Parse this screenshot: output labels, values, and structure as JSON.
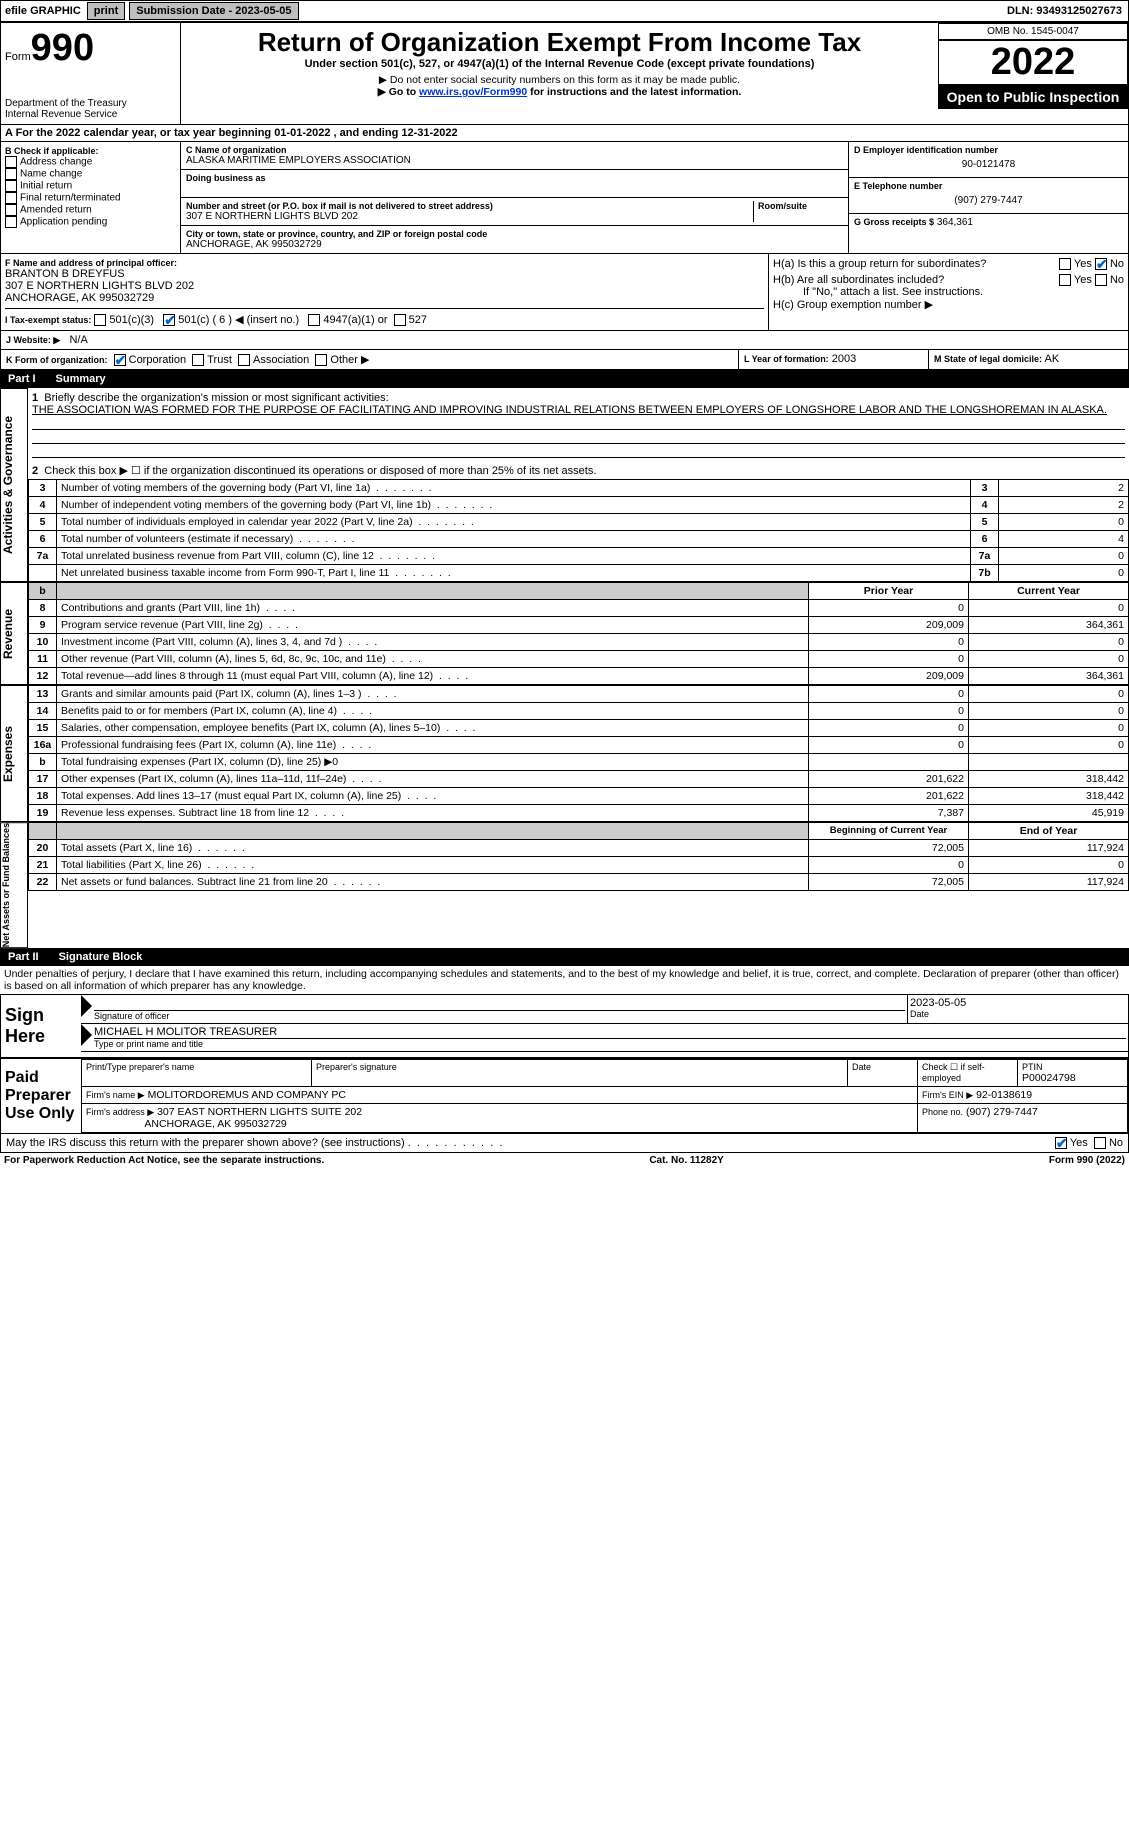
{
  "topbar": {
    "efile": "efile GRAPHIC",
    "print": "print",
    "sub_lbl": "Submission Date - 2023-05-05",
    "dln_lbl": "DLN: 93493125027673"
  },
  "header": {
    "form_word": "Form",
    "form_num": "990",
    "dept": "Department of the Treasury",
    "irs": "Internal Revenue Service",
    "title": "Return of Organization Exempt From Income Tax",
    "sub1": "Under section 501(c), 527, or 4947(a)(1) of the Internal Revenue Code (except private foundations)",
    "sub2": "▶ Do not enter social security numbers on this form as it may be made public.",
    "sub3_pre": "▶ Go to ",
    "sub3_link": "www.irs.gov/Form990",
    "sub3_post": " for instructions and the latest information.",
    "omb": "OMB No. 1545-0047",
    "year": "2022",
    "open": "Open to Public Inspection"
  },
  "A": {
    "line": "A For the 2022 calendar year, or tax year beginning 01-01-2022   , and ending 12-31-2022"
  },
  "B": {
    "hdr": "B Check if applicable:",
    "opts": [
      "Address change",
      "Name change",
      "Initial return",
      "Final return/terminated",
      "Amended return",
      "Application pending"
    ]
  },
  "C": {
    "name_lbl": "C Name of organization",
    "name": "ALASKA MARITIME EMPLOYERS ASSOCIATION",
    "dba_lbl": "Doing business as",
    "addr_lbl": "Number and street (or P.O. box if mail is not delivered to street address)",
    "room_lbl": "Room/suite",
    "addr": "307 E NORTHERN LIGHTS BLVD 202",
    "city_lbl": "City or town, state or province, country, and ZIP or foreign postal code",
    "city": "ANCHORAGE, AK  995032729"
  },
  "D": {
    "lbl": "D Employer identification number",
    "val": "90-0121478",
    "tel_lbl": "E Telephone number",
    "tel": "(907) 279-7447",
    "gross_lbl": "G Gross receipts $",
    "gross": "364,361"
  },
  "F": {
    "lbl": "F  Name and address of principal officer:",
    "name": "BRANTON B DREYFUS",
    "addr1": "307 E NORTHERN LIGHTS BLVD 202",
    "addr2": "ANCHORAGE, AK  995032729"
  },
  "H": {
    "a": "H(a)  Is this a group return for subordinates?",
    "b": "H(b)  Are all subordinates included?",
    "b2": "If \"No,\" attach a list. See instructions.",
    "c": "H(c)  Group exemption number ▶",
    "yes": "Yes",
    "no": "No"
  },
  "I": {
    "lbl": "I   Tax-exempt status:",
    "o1": "501(c)(3)",
    "o2": "501(c) ( 6 ) ◀ (insert no.)",
    "o3": "4947(a)(1) or",
    "o4": "527"
  },
  "J": {
    "lbl": "J   Website: ▶",
    "val": "N/A"
  },
  "K": {
    "lbl": "K Form of organization:",
    "o1": "Corporation",
    "o2": "Trust",
    "o3": "Association",
    "o4": "Other ▶"
  },
  "L": {
    "lbl": "L Year of formation:",
    "val": "2003"
  },
  "M": {
    "lbl": "M State of legal domicile:",
    "val": "AK"
  },
  "part1": {
    "hdr": "Part I",
    "title": "Summary",
    "side1": "Activities & Governance",
    "side2": "Revenue",
    "side3": "Expenses",
    "side4": "Net Assets or Fund Balances",
    "l1": "Briefly describe the organization's mission or most significant activities:",
    "mission": "THE ASSOCIATION WAS FORMED FOR THE PURPOSE OF FACILITATING AND IMPROVING INDUSTRIAL RELATIONS BETWEEN EMPLOYERS OF LONGSHORE LABOR AND THE LONGSHOREMAN IN ALASKA.",
    "l2": "Check this box ▶ ☐  if the organization discontinued its operations or disposed of more than 25% of its net assets.",
    "rows_gov": [
      {
        "n": "3",
        "t": "Number of voting members of the governing body (Part VI, line 1a)",
        "b": "3",
        "v": "2"
      },
      {
        "n": "4",
        "t": "Number of independent voting members of the governing body (Part VI, line 1b)",
        "b": "4",
        "v": "2"
      },
      {
        "n": "5",
        "t": "Total number of individuals employed in calendar year 2022 (Part V, line 2a)",
        "b": "5",
        "v": "0"
      },
      {
        "n": "6",
        "t": "Total number of volunteers (estimate if necessary)",
        "b": "6",
        "v": "4"
      },
      {
        "n": "7a",
        "t": "Total unrelated business revenue from Part VIII, column (C), line 12",
        "b": "7a",
        "v": "0"
      },
      {
        "n": "",
        "t": "Net unrelated business taxable income from Form 990-T, Part I, line 11",
        "b": "7b",
        "v": "0"
      }
    ],
    "col_py": "Prior Year",
    "col_cy": "Current Year",
    "rows_rev": [
      {
        "n": "8",
        "t": "Contributions and grants (Part VIII, line 1h)",
        "py": "0",
        "cy": "0"
      },
      {
        "n": "9",
        "t": "Program service revenue (Part VIII, line 2g)",
        "py": "209,009",
        "cy": "364,361"
      },
      {
        "n": "10",
        "t": "Investment income (Part VIII, column (A), lines 3, 4, and 7d )",
        "py": "0",
        "cy": "0"
      },
      {
        "n": "11",
        "t": "Other revenue (Part VIII, column (A), lines 5, 6d, 8c, 9c, 10c, and 11e)",
        "py": "0",
        "cy": "0"
      },
      {
        "n": "12",
        "t": "Total revenue—add lines 8 through 11 (must equal Part VIII, column (A), line 12)",
        "py": "209,009",
        "cy": "364,361"
      }
    ],
    "rows_exp": [
      {
        "n": "13",
        "t": "Grants and similar amounts paid (Part IX, column (A), lines 1–3 )",
        "py": "0",
        "cy": "0"
      },
      {
        "n": "14",
        "t": "Benefits paid to or for members (Part IX, column (A), line 4)",
        "py": "0",
        "cy": "0"
      },
      {
        "n": "15",
        "t": "Salaries, other compensation, employee benefits (Part IX, column (A), lines 5–10)",
        "py": "0",
        "cy": "0"
      },
      {
        "n": "16a",
        "t": "Professional fundraising fees (Part IX, column (A), line 11e)",
        "py": "0",
        "cy": "0"
      },
      {
        "n": "b",
        "t": "Total fundraising expenses (Part IX, column (D), line 25) ▶0",
        "py": "",
        "cy": "",
        "shade": true
      },
      {
        "n": "17",
        "t": "Other expenses (Part IX, column (A), lines 11a–11d, 11f–24e)",
        "py": "201,622",
        "cy": "318,442"
      },
      {
        "n": "18",
        "t": "Total expenses. Add lines 13–17 (must equal Part IX, column (A), line 25)",
        "py": "201,622",
        "cy": "318,442"
      },
      {
        "n": "19",
        "t": "Revenue less expenses. Subtract line 18 from line 12",
        "py": "7,387",
        "cy": "45,919"
      }
    ],
    "col_boy": "Beginning of Current Year",
    "col_eoy": "End of Year",
    "rows_net": [
      {
        "n": "20",
        "t": "Total assets (Part X, line 16)",
        "py": "72,005",
        "cy": "117,924"
      },
      {
        "n": "21",
        "t": "Total liabilities (Part X, line 26)",
        "py": "0",
        "cy": "0"
      },
      {
        "n": "22",
        "t": "Net assets or fund balances. Subtract line 21 from line 20",
        "py": "72,005",
        "cy": "117,924"
      }
    ]
  },
  "part2": {
    "hdr": "Part II",
    "title": "Signature Block",
    "pen": "Under penalties of perjury, I declare that I have examined this return, including accompanying schedules and statements, and to the best of my knowledge and belief, it is true, correct, and complete. Declaration of preparer (other than officer) is based on all information of which preparer has any knowledge.",
    "sign_lbl": "Sign Here",
    "sig_officer": "Signature of officer",
    "sig_date": "2023-05-05",
    "date_lbl": "Date",
    "officer_name": "MICHAEL H MOLITOR  TREASURER",
    "type_lbl": "Type or print name and title",
    "paid_lbl": "Paid Preparer Use Only",
    "pp_name_lbl": "Print/Type preparer's name",
    "pp_sig_lbl": "Preparer's signature",
    "pp_date_lbl": "Date",
    "pp_chk": "Check ☐ if self-employed",
    "ptin_lbl": "PTIN",
    "ptin": "P00024798",
    "firm_lbl": "Firm's name    ▶",
    "firm": "MOLITORDOREMUS AND COMPANY PC",
    "ein_lbl": "Firm's EIN ▶",
    "ein": "92-0138619",
    "faddr_lbl": "Firm's address ▶",
    "faddr1": "307 EAST NORTHERN LIGHTS SUITE 202",
    "faddr2": "ANCHORAGE, AK  995032729",
    "phone_lbl": "Phone no.",
    "phone": "(907) 279-7447",
    "discuss": "May the IRS discuss this return with the preparer shown above? (see instructions)",
    "yes": "Yes",
    "no": "No"
  },
  "footer": {
    "l": "For Paperwork Reduction Act Notice, see the separate instructions.",
    "c": "Cat. No. 11282Y",
    "r": "Form 990 (2022)"
  }
}
